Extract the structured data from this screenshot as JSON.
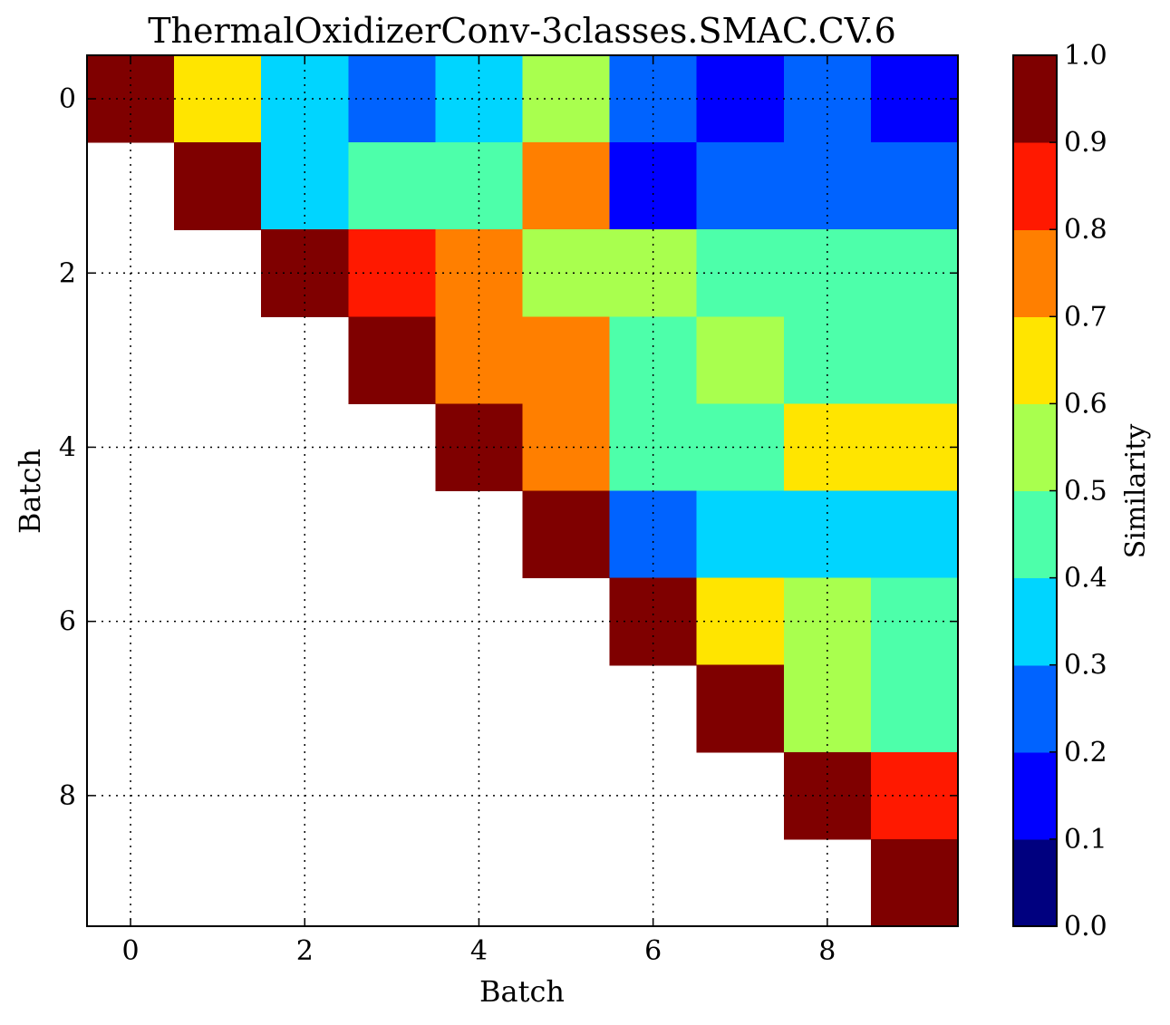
{
  "chart_data": {
    "type": "heatmap",
    "title": "ThermalOxidizerConv-3classes.SMAC.CV.6",
    "xlabel": "Batch",
    "ylabel": "Batch",
    "x_ticks": [
      "0",
      "2",
      "4",
      "6",
      "8"
    ],
    "y_ticks": [
      "0",
      "2",
      "4",
      "6",
      "8"
    ],
    "rows": 10,
    "cols": 10,
    "values": [
      [
        0.95,
        0.65,
        0.35,
        0.25,
        0.35,
        0.55,
        0.25,
        0.15,
        0.25,
        0.15
      ],
      [
        null,
        0.95,
        0.35,
        0.45,
        0.45,
        0.75,
        0.15,
        0.25,
        0.25,
        0.25
      ],
      [
        null,
        null,
        0.95,
        0.85,
        0.75,
        0.55,
        0.55,
        0.45,
        0.45,
        0.45
      ],
      [
        null,
        null,
        null,
        0.95,
        0.75,
        0.75,
        0.45,
        0.55,
        0.45,
        0.45
      ],
      [
        null,
        null,
        null,
        null,
        0.95,
        0.75,
        0.45,
        0.45,
        0.65,
        0.65
      ],
      [
        null,
        null,
        null,
        null,
        null,
        0.95,
        0.25,
        0.35,
        0.35,
        0.35
      ],
      [
        null,
        null,
        null,
        null,
        null,
        null,
        0.95,
        0.65,
        0.55,
        0.45
      ],
      [
        null,
        null,
        null,
        null,
        null,
        null,
        null,
        0.95,
        0.55,
        0.45
      ],
      [
        null,
        null,
        null,
        null,
        null,
        null,
        null,
        null,
        0.95,
        0.85
      ],
      [
        null,
        null,
        null,
        null,
        null,
        null,
        null,
        null,
        null,
        0.95
      ]
    ],
    "grid": true,
    "colorbar": {
      "label": "Similarity",
      "range": [
        0.0,
        1.0
      ],
      "ticks": [
        "0.0",
        "0.1",
        "0.2",
        "0.3",
        "0.4",
        "0.5",
        "0.6",
        "0.7",
        "0.8",
        "0.9",
        "1.0"
      ],
      "colors": [
        "#00007f",
        "#0000ff",
        "#0063ff",
        "#00d5ff",
        "#4dffaa",
        "#a9ff4e",
        "#ffe500",
        "#ff7f00",
        "#ff1900",
        "#7f0000"
      ]
    }
  }
}
